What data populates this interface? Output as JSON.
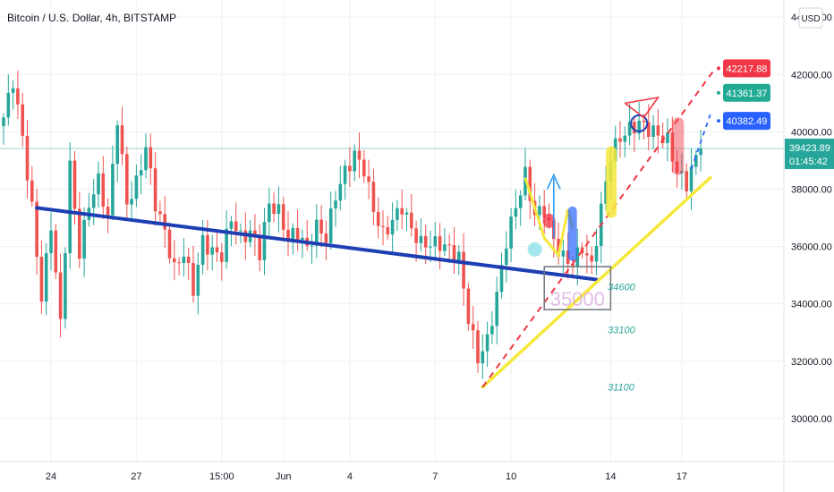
{
  "header": {
    "title": "Bitcoin / U.S. Dollar, 4h, BITSTAMP",
    "currency": "USD"
  },
  "colors": {
    "up": "#26a69a",
    "down": "#ef5350",
    "trend_blue": "#1e3fb4",
    "trend_yellow": "#f5e83a",
    "target_red": "#f23645",
    "target_green": "#22ab94",
    "target_blue": "#2962ff",
    "grid": "#eef0f3"
  },
  "chart_data": {
    "type": "candlestick",
    "title": "Bitcoin / U.S. Dollar, 4h, BITSTAMP",
    "ylim": [
      28500,
      44600
    ],
    "y_ticks": [
      "44000.00",
      "42000.00",
      "40000.00",
      "38000.00",
      "36000.00",
      "34000.00",
      "32000.00",
      "30000.00"
    ],
    "y_tick_values": [
      44000,
      42000,
      40000,
      38000,
      36000,
      34000,
      32000,
      30000
    ],
    "x_ticks": [
      "24",
      "27",
      "15:00",
      "Jun",
      "4",
      "7",
      "10",
      "14",
      "17"
    ],
    "x_tick_index": [
      10,
      28,
      46,
      59,
      73,
      91,
      107,
      128,
      143
    ],
    "n_bars": 154,
    "anchors": [
      [
        0,
        40500
      ],
      [
        2,
        41800
      ],
      [
        4,
        39800
      ],
      [
        6,
        37300
      ],
      [
        8,
        34200
      ],
      [
        10,
        36800
      ],
      [
        12,
        33300
      ],
      [
        14,
        38800
      ],
      [
        16,
        35800
      ],
      [
        18,
        37500
      ],
      [
        20,
        38300
      ],
      [
        22,
        37000
      ],
      [
        24,
        40500
      ],
      [
        26,
        37500
      ],
      [
        28,
        38200
      ],
      [
        30,
        39500
      ],
      [
        32,
        37500
      ],
      [
        34,
        36500
      ],
      [
        36,
        35200
      ],
      [
        38,
        35800
      ],
      [
        40,
        34500
      ],
      [
        42,
        36200
      ],
      [
        44,
        35800
      ],
      [
        46,
        35700
      ],
      [
        48,
        37000
      ],
      [
        50,
        36300
      ],
      [
        52,
        36500
      ],
      [
        54,
        35800
      ],
      [
        56,
        37500
      ],
      [
        58,
        37200
      ],
      [
        60,
        36300
      ],
      [
        62,
        36500
      ],
      [
        64,
        35900
      ],
      [
        66,
        36700
      ],
      [
        68,
        36300
      ],
      [
        70,
        37800
      ],
      [
        72,
        38600
      ],
      [
        74,
        39200
      ],
      [
        76,
        38700
      ],
      [
        78,
        37300
      ],
      [
        80,
        36400
      ],
      [
        82,
        36900
      ],
      [
        84,
        37400
      ],
      [
        86,
        36600
      ],
      [
        88,
        36100
      ],
      [
        90,
        36100
      ],
      [
        92,
        36100
      ],
      [
        94,
        35900
      ],
      [
        96,
        35600
      ],
      [
        98,
        33500
      ],
      [
        100,
        32100
      ],
      [
        102,
        32700
      ],
      [
        104,
        34300
      ],
      [
        106,
        36200
      ],
      [
        108,
        37400
      ],
      [
        110,
        38500
      ],
      [
        112,
        37100
      ],
      [
        114,
        37300
      ],
      [
        116,
        36200
      ],
      [
        118,
        35600
      ],
      [
        120,
        35400
      ],
      [
        122,
        36000
      ],
      [
        124,
        35300
      ],
      [
        126,
        37300
      ],
      [
        128,
        39200
      ],
      [
        130,
        39800
      ],
      [
        132,
        40100
      ],
      [
        134,
        40300
      ],
      [
        136,
        40100
      ],
      [
        138,
        39900
      ],
      [
        140,
        39700
      ],
      [
        142,
        38600
      ],
      [
        144,
        38200
      ],
      [
        146,
        39100
      ],
      [
        147,
        39420
      ]
    ],
    "last_price": "39423.89",
    "countdown": "01:45:42",
    "targets": [
      {
        "label": "42217.88",
        "value": 42217.88
      },
      {
        "label": "41361.37",
        "value": 41361.37
      },
      {
        "label": "40382.49",
        "value": 40382.49
      }
    ],
    "annotations": [
      {
        "label": "34600",
        "value": 34600
      },
      {
        "label": "33100",
        "value": 33100
      },
      {
        "label": "31100",
        "value": 31100
      }
    ],
    "boxed_level": "35000"
  }
}
